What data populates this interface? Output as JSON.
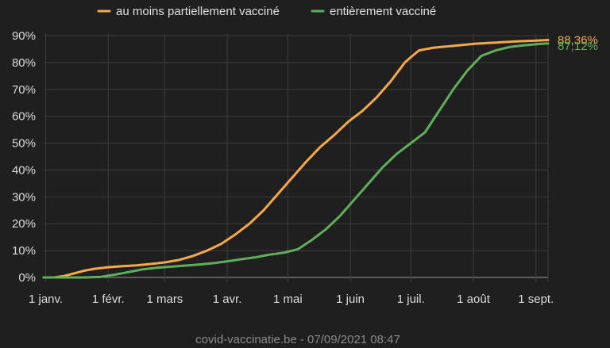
{
  "chart_data": {
    "type": "line",
    "ylim": [
      0,
      90
    ],
    "y_ticks": [
      0,
      10,
      20,
      30,
      40,
      50,
      60,
      70,
      80,
      90
    ],
    "y_tick_labels": [
      "0%",
      "10%",
      "20%",
      "30%",
      "40%",
      "50%",
      "60%",
      "70%",
      "80%",
      "90%"
    ],
    "x_ticks": [
      "2021-01-01",
      "2021-02-01",
      "2021-03-01",
      "2021-04-01",
      "2021-05-01",
      "2021-06-01",
      "2021-07-01",
      "2021-08-01",
      "2021-09-01"
    ],
    "x_tick_labels": [
      "1 janv.",
      "1 févr.",
      "1 mars",
      "1 avr.",
      "1 mai",
      "1 juin",
      "1 juil.",
      "1 août",
      "1 sept."
    ],
    "xlim": [
      "2020-12-31",
      "2021-09-07"
    ],
    "grid": true,
    "legend_position": "top-left",
    "series": [
      {
        "name": "au moins partiellement vacciné",
        "color": "#f5a84a",
        "end_label": "88,36%",
        "points": [
          [
            "2020-12-31",
            0
          ],
          [
            "2021-01-05",
            0
          ],
          [
            "2021-01-10",
            0.5
          ],
          [
            "2021-01-15",
            1.5
          ],
          [
            "2021-01-20",
            2.5
          ],
          [
            "2021-01-25",
            3.2
          ],
          [
            "2021-02-01",
            3.8
          ],
          [
            "2021-02-08",
            4.2
          ],
          [
            "2021-02-15",
            4.5
          ],
          [
            "2021-02-22",
            5
          ],
          [
            "2021-03-01",
            5.6
          ],
          [
            "2021-03-08",
            6.5
          ],
          [
            "2021-03-15",
            8
          ],
          [
            "2021-03-22",
            10
          ],
          [
            "2021-03-29",
            12.5
          ],
          [
            "2021-04-05",
            16
          ],
          [
            "2021-04-12",
            20
          ],
          [
            "2021-04-19",
            25
          ],
          [
            "2021-04-26",
            31
          ],
          [
            "2021-05-03",
            37
          ],
          [
            "2021-05-10",
            43
          ],
          [
            "2021-05-17",
            48.5
          ],
          [
            "2021-05-24",
            53
          ],
          [
            "2021-05-31",
            58
          ],
          [
            "2021-06-07",
            62
          ],
          [
            "2021-06-14",
            67
          ],
          [
            "2021-06-21",
            73
          ],
          [
            "2021-06-28",
            80
          ],
          [
            "2021-07-01",
            82
          ],
          [
            "2021-07-05",
            84.5
          ],
          [
            "2021-07-12",
            85.5
          ],
          [
            "2021-07-19",
            86
          ],
          [
            "2021-07-26",
            86.5
          ],
          [
            "2021-08-02",
            87
          ],
          [
            "2021-08-09",
            87.3
          ],
          [
            "2021-08-16",
            87.6
          ],
          [
            "2021-08-23",
            87.9
          ],
          [
            "2021-08-30",
            88.1
          ],
          [
            "2021-09-07",
            88.36
          ]
        ]
      },
      {
        "name": "entièrement vacciné",
        "color": "#5fae5a",
        "end_label": "87,12%",
        "points": [
          [
            "2020-12-31",
            0
          ],
          [
            "2021-01-20",
            0
          ],
          [
            "2021-01-28",
            0.2
          ],
          [
            "2021-02-04",
            1
          ],
          [
            "2021-02-11",
            2
          ],
          [
            "2021-02-18",
            3
          ],
          [
            "2021-02-25",
            3.6
          ],
          [
            "2021-03-04",
            4
          ],
          [
            "2021-03-11",
            4.4
          ],
          [
            "2021-03-18",
            4.8
          ],
          [
            "2021-03-25",
            5.3
          ],
          [
            "2021-04-01",
            6
          ],
          [
            "2021-04-08",
            6.8
          ],
          [
            "2021-04-15",
            7.5
          ],
          [
            "2021-04-22",
            8.5
          ],
          [
            "2021-04-29",
            9.2
          ],
          [
            "2021-05-06",
            10.5
          ],
          [
            "2021-05-13",
            14
          ],
          [
            "2021-05-20",
            18
          ],
          [
            "2021-05-27",
            23
          ],
          [
            "2021-06-03",
            29
          ],
          [
            "2021-06-10",
            35
          ],
          [
            "2021-06-17",
            41
          ],
          [
            "2021-06-24",
            46
          ],
          [
            "2021-07-01",
            50
          ],
          [
            "2021-07-08",
            54
          ],
          [
            "2021-07-15",
            62
          ],
          [
            "2021-07-22",
            70
          ],
          [
            "2021-07-29",
            77
          ],
          [
            "2021-08-05",
            82.5
          ],
          [
            "2021-08-12",
            84.5
          ],
          [
            "2021-08-19",
            85.8
          ],
          [
            "2021-08-26",
            86.4
          ],
          [
            "2021-09-02",
            86.9
          ],
          [
            "2021-09-07",
            87.12
          ]
        ]
      }
    ]
  },
  "footer": {
    "source": "covid-vaccinatie.be - 07/09/2021 08:47"
  }
}
